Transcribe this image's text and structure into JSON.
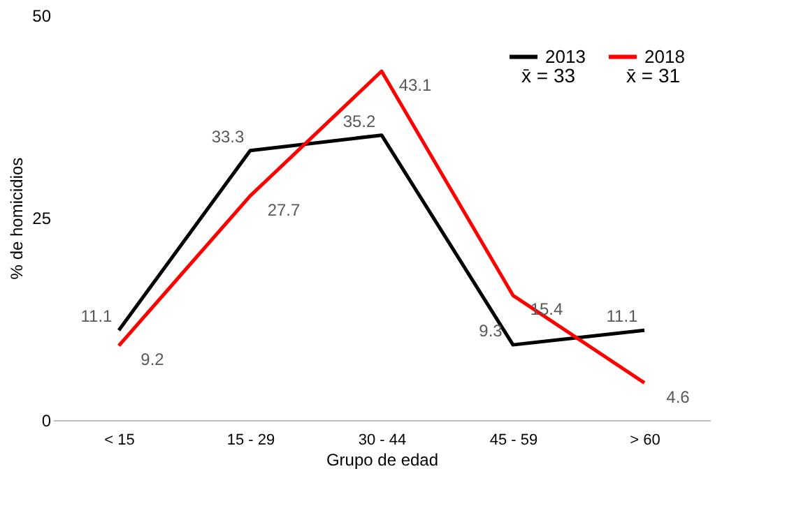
{
  "chart_data": {
    "type": "line",
    "xlabel": "Grupo de edad",
    "ylabel": "% de homicidios",
    "categories": [
      "< 15",
      "15 - 29",
      "30 - 44",
      "45 - 59",
      "> 60"
    ],
    "series": [
      {
        "name": "2013",
        "color": "#000000",
        "values": [
          11.1,
          33.3,
          35.2,
          9.3,
          11.1
        ]
      },
      {
        "name": "2018",
        "color": "#ff0000",
        "values": [
          9.2,
          27.7,
          43.1,
          15.4,
          4.6
        ]
      }
    ],
    "annotations": [
      "x̄ = 33",
      "x̄ = 31"
    ],
    "ylim": [
      0,
      50
    ],
    "yticks": [
      0,
      25,
      50
    ],
    "grid": false,
    "legend": "top right",
    "data_labels": true,
    "marker": "none",
    "line_style": "solid"
  }
}
